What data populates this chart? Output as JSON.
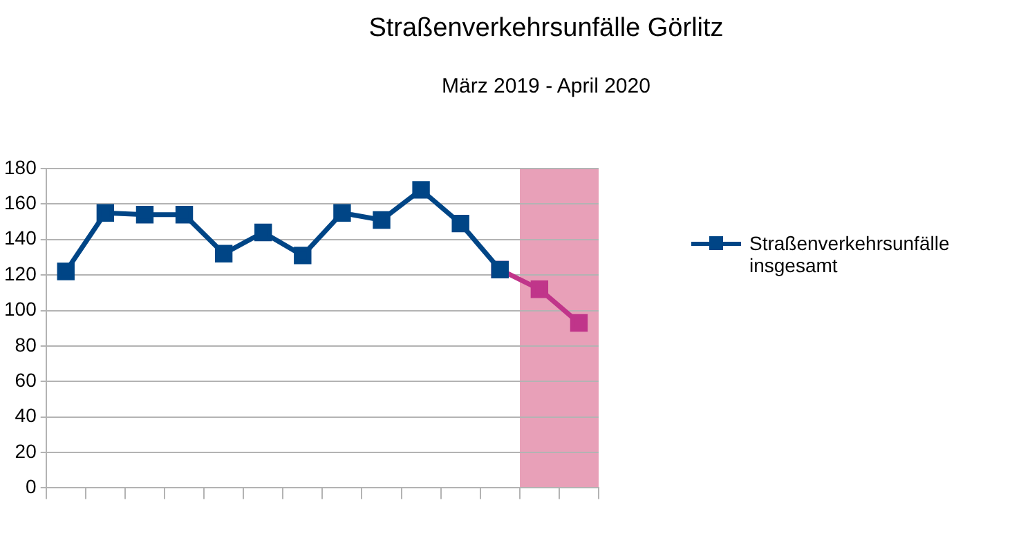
{
  "chart_data": {
    "type": "line",
    "title": "Straßenverkehrsunfälle Görlitz",
    "subtitle": "März 2019 - April 2020",
    "categories": [
      null,
      null,
      null,
      null,
      null,
      null,
      null,
      null,
      null,
      null,
      null,
      null,
      null,
      null
    ],
    "series": [
      {
        "name": "Straßenverkehrsunfälle insgesamt",
        "color": "#004586",
        "values": [
          122,
          155,
          154,
          154,
          132,
          144,
          131,
          155,
          151,
          168,
          149,
          123,
          null,
          null
        ]
      },
      {
        "color": "#c0358a",
        "values": [
          null,
          null,
          null,
          null,
          null,
          null,
          null,
          null,
          null,
          null,
          null,
          123,
          112,
          93
        ]
      }
    ],
    "ylim": [
      0,
      180
    ],
    "yticks": [
      0,
      20,
      40,
      60,
      80,
      100,
      120,
      140,
      160,
      180
    ],
    "grid": "y",
    "legend": "right",
    "marker": "square",
    "line_style": "solid"
  }
}
